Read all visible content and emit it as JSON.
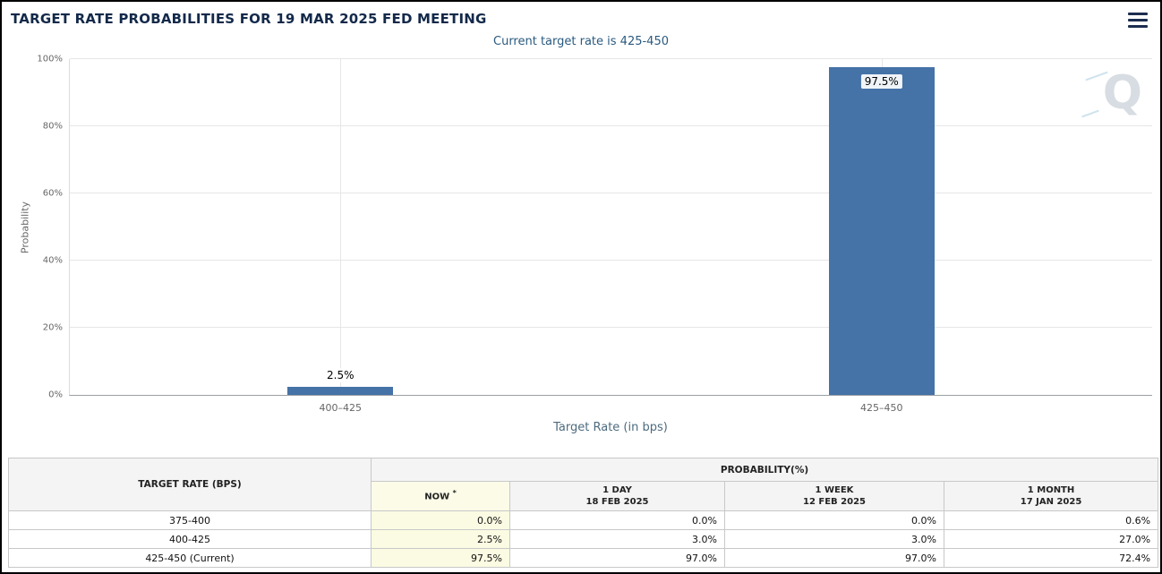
{
  "header": {
    "title": "TARGET RATE PROBABILITIES FOR 19 MAR 2025 FED MEETING"
  },
  "chart_data": {
    "type": "bar",
    "title": "TARGET RATE PROBABILITIES FOR 19 MAR 2025 FED MEETING",
    "subtitle": "Current target rate is 425-450",
    "xlabel": "Target Rate (in bps)",
    "ylabel": "Probability",
    "categories": [
      "400–425",
      "425–450"
    ],
    "values": [
      2.5,
      97.5
    ],
    "bar_labels": [
      "2.5%",
      "97.5%"
    ],
    "ylim": [
      0,
      100
    ],
    "yticks": [
      0,
      20,
      40,
      60,
      80,
      100
    ],
    "ytick_labels": [
      "0%",
      "20%",
      "40%",
      "60%",
      "80%",
      "100%"
    ],
    "grid": true,
    "legend": "none",
    "bar_color": "#4572a7",
    "watermark": "Q"
  },
  "table": {
    "rate_header": "TARGET RATE (BPS)",
    "probability_header": "PROBABILITY(%)",
    "columns": [
      {
        "label": "NOW",
        "mark": "*",
        "date": ""
      },
      {
        "label": "1 DAY",
        "date": "18 FEB 2025"
      },
      {
        "label": "1 WEEK",
        "date": "12 FEB 2025"
      },
      {
        "label": "1 MONTH",
        "date": "17 JAN 2025"
      }
    ],
    "rows": [
      {
        "rate": "375-400",
        "now": "0.0%",
        "one_day": "0.0%",
        "one_week": "0.0%",
        "one_month": "0.6%"
      },
      {
        "rate": "400-425",
        "now": "2.5%",
        "one_day": "3.0%",
        "one_week": "3.0%",
        "one_month": "27.0%"
      },
      {
        "rate": "425-450 (Current)",
        "now": "97.5%",
        "one_day": "97.0%",
        "one_week": "97.0%",
        "one_month": "72.4%"
      }
    ]
  },
  "colors": {
    "bar": "#4572a7",
    "title_text": "#13294a",
    "subtitle_text": "#2a5a7f",
    "now_column_bg": "#fbfbe3",
    "header_bg": "#f4f4f4"
  }
}
